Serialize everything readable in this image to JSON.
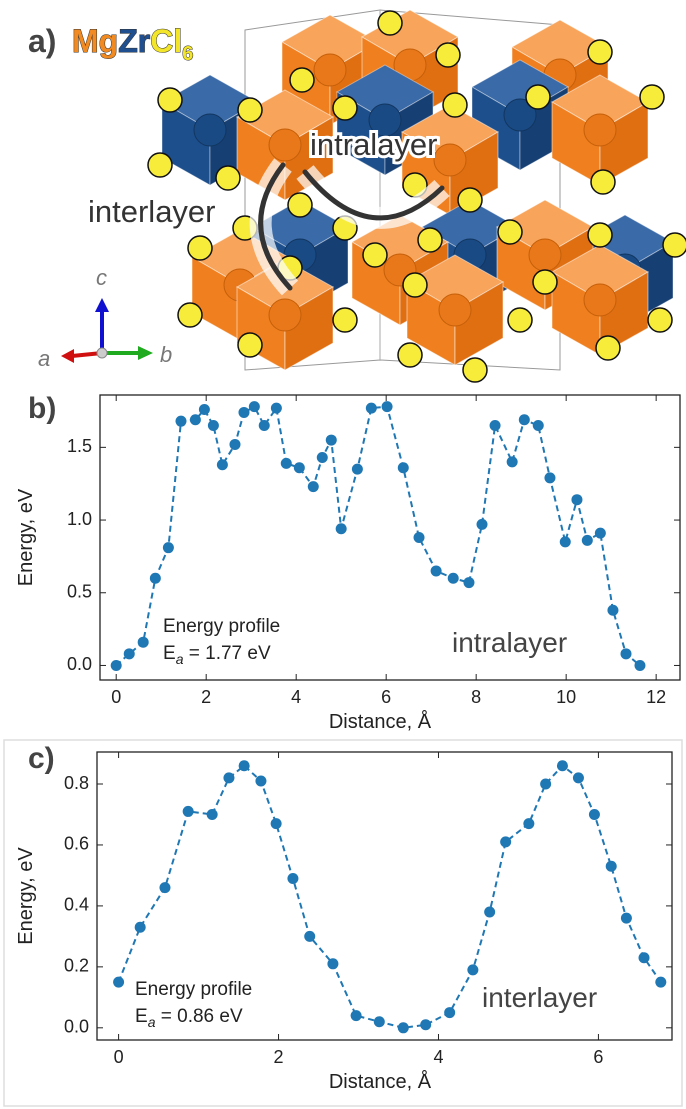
{
  "structure_panel": {
    "panel_label": "a)",
    "formula": [
      {
        "text": "Mg",
        "color": "#f28a22"
      },
      {
        "text": "Zr",
        "color": "#1f4f8f"
      },
      {
        "text": "Cl",
        "color": "#f3e52a"
      },
      {
        "text": "6",
        "color": "#f3e52a"
      }
    ],
    "path_labels": [
      "intralayer",
      "interlayer"
    ],
    "axis_labels": {
      "c": "c",
      "a": "a",
      "b": "b"
    }
  },
  "chart_data": [
    {
      "type": "line",
      "panel_label": "b)",
      "xlabel": "Distance, Å",
      "ylabel": "Energy, eV",
      "annotation": "Energy profile",
      "ea_label": {
        "symbol": "E",
        "subscript": "a",
        "text": " = 1.77 eV"
      },
      "path_label": "intralayer",
      "color": "#1f77b4",
      "x": [
        0,
        0.29,
        0.6,
        0.87,
        1.16,
        1.44,
        1.76,
        1.96,
        2.16,
        2.36,
        2.64,
        2.84,
        3.07,
        3.29,
        3.56,
        3.78,
        4.07,
        4.38,
        4.58,
        4.78,
        5.0,
        5.36,
        5.67,
        6.02,
        6.38,
        6.73,
        7.11,
        7.49,
        7.84,
        8.13,
        8.42,
        8.8,
        9.07,
        9.38,
        9.64,
        9.98,
        10.24,
        10.47,
        10.76,
        11.04,
        11.33,
        11.64
      ],
      "values": [
        0,
        0.08,
        0.16,
        0.6,
        0.81,
        1.68,
        1.69,
        1.76,
        1.65,
        1.38,
        1.52,
        1.74,
        1.78,
        1.65,
        1.77,
        1.39,
        1.36,
        1.23,
        1.43,
        1.55,
        0.94,
        1.35,
        1.77,
        1.78,
        1.36,
        0.88,
        0.65,
        0.6,
        0.57,
        0.97,
        1.65,
        1.4,
        1.69,
        1.65,
        1.29,
        0.85,
        1.14,
        0.86,
        0.91,
        0.38,
        0.08,
        0
      ],
      "xlim": [
        -0.36,
        12.53
      ],
      "ylim": [
        -0.1,
        1.86
      ],
      "xticks": [
        0,
        2,
        4,
        6,
        8,
        10,
        12
      ],
      "yticks": [
        {
          "value": 0,
          "label": "0.0"
        },
        {
          "value": 0.5,
          "label": "0.5"
        },
        {
          "value": 1,
          "label": "1.0"
        },
        {
          "value": 1.5,
          "label": "1.5"
        }
      ]
    },
    {
      "type": "line",
      "panel_label": "c)",
      "xlabel": "Distance, Å",
      "ylabel": "Energy, eV",
      "annotation": "Energy profile",
      "ea_label": {
        "symbol": "E",
        "subscript": "a",
        "text": " = 0.86 eV"
      },
      "path_label": "interlayer",
      "color": "#1f77b4",
      "x": [
        0,
        0.27,
        0.58,
        0.87,
        1.17,
        1.38,
        1.57,
        1.78,
        1.97,
        2.18,
        2.39,
        2.68,
        2.97,
        3.26,
        3.56,
        3.84,
        4.14,
        4.43,
        4.64,
        4.84,
        5.13,
        5.34,
        5.55,
        5.75,
        5.95,
        6.16,
        6.35,
        6.57,
        6.78
      ],
      "values": [
        0.15,
        0.33,
        0.46,
        0.71,
        0.7,
        0.82,
        0.86,
        0.81,
        0.67,
        0.49,
        0.3,
        0.21,
        0.04,
        0.02,
        0.0,
        0.01,
        0.05,
        0.19,
        0.38,
        0.61,
        0.67,
        0.8,
        0.86,
        0.82,
        0.7,
        0.53,
        0.36,
        0.23,
        0.15
      ],
      "xlim": [
        -0.27,
        6.92
      ],
      "ylim": [
        -0.04,
        0.905
      ],
      "xticks": [
        0,
        2,
        4,
        6
      ],
      "yticks": [
        {
          "value": 0,
          "label": "0.0"
        },
        {
          "value": 0.2,
          "label": "0.2"
        },
        {
          "value": 0.4,
          "label": "0.4"
        },
        {
          "value": 0.6,
          "label": "0.6"
        },
        {
          "value": 0.8,
          "label": "0.8"
        }
      ]
    }
  ]
}
